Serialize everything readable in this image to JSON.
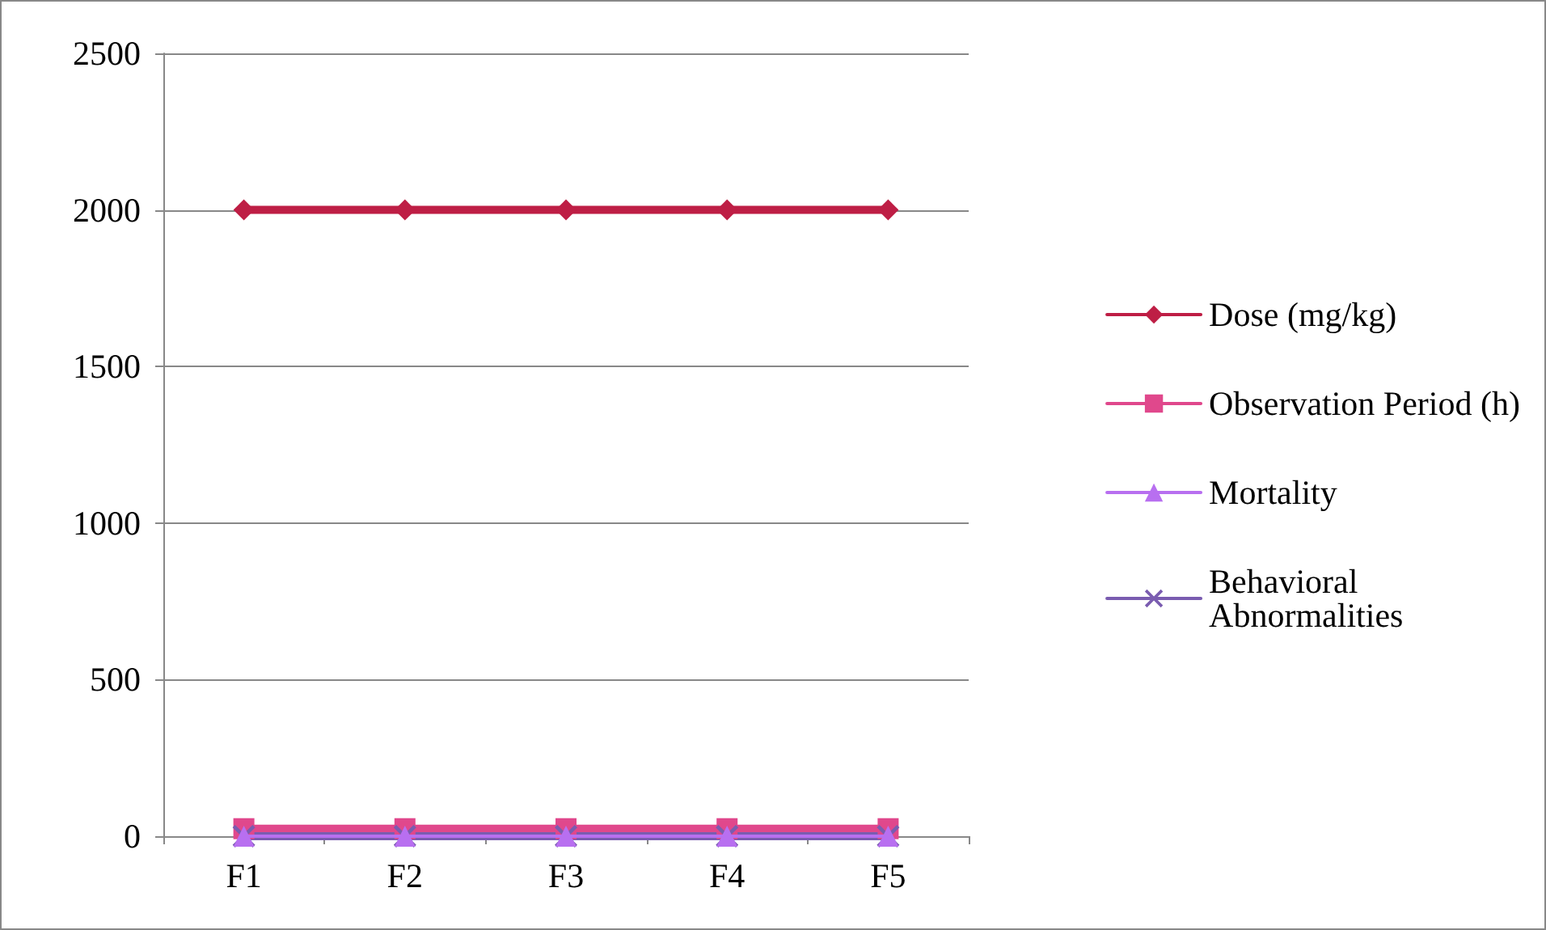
{
  "chart_data": {
    "type": "line",
    "categories": [
      "F1",
      "F2",
      "F3",
      "F4",
      "F5"
    ],
    "series": [
      {
        "name": "Dose (mg/kg)",
        "color": "#be1e45",
        "marker": "diamond",
        "values": [
          2000,
          2000,
          2000,
          2000,
          2000
        ]
      },
      {
        "name": "Observation Period (h)",
        "color": "#e0488c",
        "marker": "square",
        "values": [
          24,
          24,
          24,
          24,
          24
        ]
      },
      {
        "name": "Mortality",
        "color": "#b86ff0",
        "marker": "triangle",
        "values": [
          0,
          0,
          0,
          0,
          0
        ]
      },
      {
        "name": "Behavioral\nAbnormalities",
        "color": "#7a5cb0",
        "marker": "cross",
        "values": [
          0,
          0,
          0,
          0,
          0
        ]
      }
    ],
    "ylim": [
      0,
      2500
    ],
    "yticks": [
      0,
      500,
      1000,
      1500,
      2000,
      2500
    ],
    "grid": "y",
    "legend": "right",
    "line_style": "solid"
  }
}
